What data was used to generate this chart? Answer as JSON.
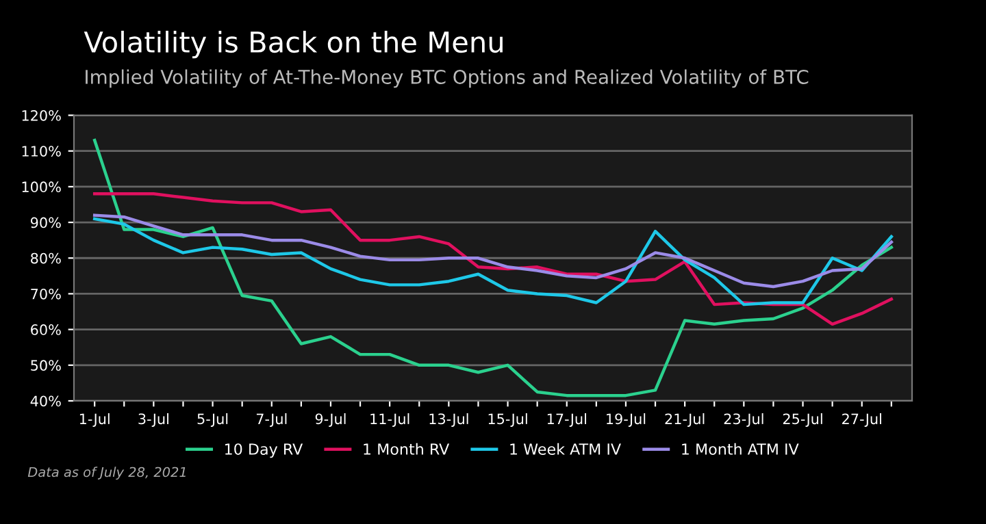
{
  "chart_data": {
    "type": "line",
    "title": "Volatility is Back on the Menu",
    "subtitle": "Implied Volatility of At-The-Money BTC Options and Realized Volatility of BTC",
    "categories": [
      "1-Jul",
      null,
      "3-Jul",
      null,
      "5-Jul",
      null,
      "7-Jul",
      null,
      "9-Jul",
      null,
      "11-Jul",
      null,
      "13-Jul",
      null,
      "15-Jul",
      null,
      "17-Jul",
      null,
      "19-Jul",
      null,
      "21-Jul",
      null,
      "23-Jul",
      null,
      "25-Jul",
      null,
      "27-Jul",
      null
    ],
    "series": [
      {
        "name": "10 Day RV",
        "color": "#2bd18e",
        "values": [
          113,
          88,
          88,
          86,
          88.5,
          69.5,
          68,
          56,
          58,
          53,
          53,
          50,
          50,
          48,
          50,
          42.5,
          41.5,
          41.5,
          41.5,
          43,
          62.5,
          61.5,
          62.5,
          63,
          66,
          71,
          78,
          83
        ]
      },
      {
        "name": "1 Month RV",
        "color": "#e0105f",
        "values": [
          98,
          98,
          98,
          97,
          96,
          95.5,
          95.5,
          93,
          93.5,
          85,
          85,
          86,
          84,
          77.5,
          77,
          77.5,
          75.5,
          75.5,
          73.5,
          74,
          79,
          67,
          67.5,
          67,
          67,
          61.5,
          64.5,
          68.5
        ]
      },
      {
        "name": "1 Week ATM IV",
        "color": "#1ec8e8",
        "values": [
          91,
          89.5,
          85,
          81.5,
          83,
          82.5,
          81,
          81.5,
          77,
          74,
          72.5,
          72.5,
          73.5,
          75.5,
          71,
          70,
          69.5,
          67.5,
          73.5,
          87.5,
          79.5,
          74.5,
          67,
          67.5,
          67.5,
          80,
          76.5,
          86
        ]
      },
      {
        "name": "1 Month ATM IV",
        "color": "#9b8be8",
        "values": [
          92,
          91.5,
          89,
          86.5,
          86.5,
          86.5,
          85,
          85,
          83,
          80.5,
          79.5,
          79.5,
          80,
          80,
          77.5,
          76.5,
          75,
          74.5,
          77,
          81.5,
          80,
          76.5,
          73,
          72,
          73.5,
          76.5,
          77,
          84.5
        ]
      }
    ],
    "ylim": [
      40,
      120
    ],
    "yticks": [
      {
        "value": 40,
        "label": "40%"
      },
      {
        "value": 50,
        "label": "50%"
      },
      {
        "value": 60,
        "label": "60%"
      },
      {
        "value": 70,
        "label": "70%"
      },
      {
        "value": 80,
        "label": "80%"
      },
      {
        "value": 90,
        "label": "90%"
      },
      {
        "value": 100,
        "label": "100%"
      },
      {
        "value": 110,
        "label": "110%"
      },
      {
        "value": 120,
        "label": "120%"
      }
    ],
    "grid": "y",
    "legend": "bottom",
    "marker": "none",
    "line_style": "solid",
    "annotations": [
      "Data as of July 28, 2021"
    ]
  }
}
